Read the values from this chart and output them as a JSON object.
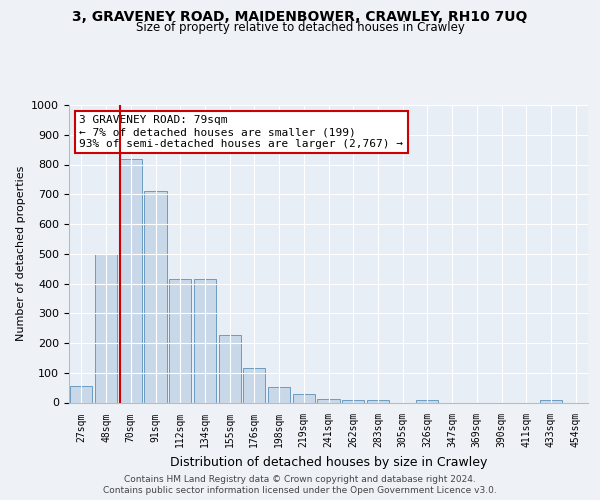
{
  "title1": "3, GRAVENEY ROAD, MAIDENBOWER, CRAWLEY, RH10 7UQ",
  "title2": "Size of property relative to detached houses in Crawley",
  "xlabel": "Distribution of detached houses by size in Crawley",
  "ylabel": "Number of detached properties",
  "categories": [
    "27sqm",
    "48sqm",
    "70sqm",
    "91sqm",
    "112sqm",
    "134sqm",
    "155sqm",
    "176sqm",
    "198sqm",
    "219sqm",
    "241sqm",
    "262sqm",
    "283sqm",
    "305sqm",
    "326sqm",
    "347sqm",
    "369sqm",
    "390sqm",
    "411sqm",
    "433sqm",
    "454sqm"
  ],
  "values": [
    55,
    500,
    820,
    710,
    415,
    415,
    228,
    115,
    53,
    30,
    12,
    10,
    10,
    0,
    10,
    0,
    0,
    0,
    0,
    8,
    0
  ],
  "bar_color": "#c8d8e8",
  "bar_edge_color": "#6a9bbf",
  "vline_x_index": 2,
  "vline_color": "#cc0000",
  "annotation_text": "3 GRAVENEY ROAD: 79sqm\n← 7% of detached houses are smaller (199)\n93% of semi-detached houses are larger (2,767) →",
  "annotation_box_color": "#ffffff",
  "annotation_box_edge": "#cc0000",
  "footer1": "Contains HM Land Registry data © Crown copyright and database right 2024.",
  "footer2": "Contains public sector information licensed under the Open Government Licence v3.0.",
  "bg_color": "#eef2f7",
  "plot_bg_color": "#e8eef6",
  "ylim": [
    0,
    1000
  ],
  "yticks": [
    0,
    100,
    200,
    300,
    400,
    500,
    600,
    700,
    800,
    900,
    1000
  ]
}
